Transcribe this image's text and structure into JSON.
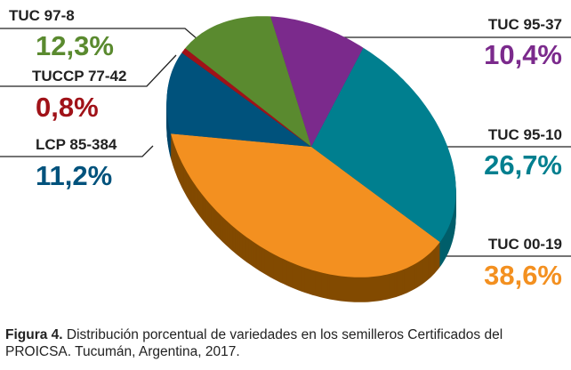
{
  "chart_data": {
    "type": "pie",
    "style": "3d",
    "categories": [
      "TUC 00-19",
      "LCP 85-384",
      "TUCCP 77-42",
      "TUC 97-8",
      "TUC 95-37",
      "TUC 95-10"
    ],
    "values": [
      38.6,
      11.2,
      0.8,
      12.3,
      10.4,
      26.7
    ],
    "value_labels": [
      "38,6%",
      "11,2%",
      "0,8%",
      "12,3%",
      "10,4%",
      "26,7%"
    ],
    "colors": [
      "#f39020",
      "#00527c",
      "#a01218",
      "#5a8a2f",
      "#7b2a8c",
      "#007f8f"
    ],
    "side_colors": [
      "#824a00",
      "#00466a",
      "#7a0c10",
      "#44691f",
      "#5c1e6a",
      "#005f6b"
    ],
    "unit": "%"
  },
  "caption": {
    "label": "Figura 4.",
    "text": " Distribución porcentual de variedades en los semilleros Certificados del PROICSA. Tucumán, Argentina, 2017."
  }
}
